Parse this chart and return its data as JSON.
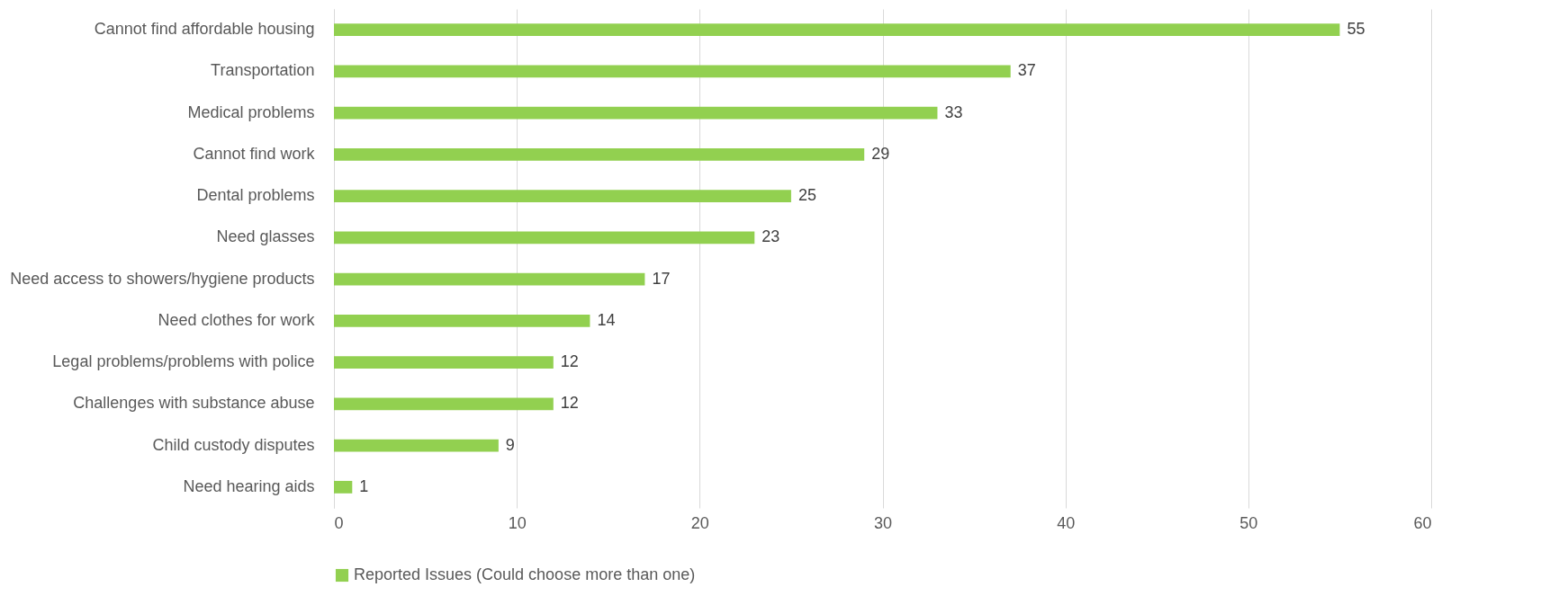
{
  "chart_data": {
    "type": "bar",
    "orientation": "horizontal",
    "categories": [
      "Cannot find affordable housing",
      "Transportation",
      "Medical problems",
      "Cannot find work",
      "Dental problems",
      "Need glasses",
      "Need access to showers/hygiene products",
      "Need clothes for work",
      "Legal problems/problems with police",
      "Challenges with substance abuse",
      "Child custody disputes",
      "Need hearing aids"
    ],
    "series": [
      {
        "name": "Reported Issues (Could choose more than one)",
        "color": "#92d050",
        "values": [
          55,
          37,
          33,
          29,
          25,
          23,
          17,
          14,
          12,
          12,
          9,
          1
        ]
      }
    ],
    "xlim": [
      0,
      60
    ],
    "xticks": [
      0,
      10,
      20,
      30,
      40,
      50,
      60
    ],
    "grid": "x",
    "legend": "bottom",
    "data_labels": true
  }
}
